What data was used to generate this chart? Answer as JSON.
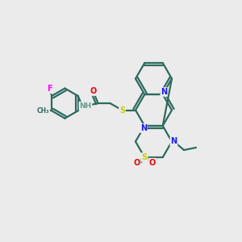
{
  "background_color": "#ebebeb",
  "bond_color": "#2d6b5e",
  "atom_colors": {
    "N": "#1a1aff",
    "S": "#cccc00",
    "O": "#ff0000",
    "F": "#ff00ff",
    "H": "#6a9a8a",
    "C_label": "#000000"
  },
  "line_width": 1.6,
  "figsize": [
    3.0,
    3.0
  ],
  "dpi": 100
}
